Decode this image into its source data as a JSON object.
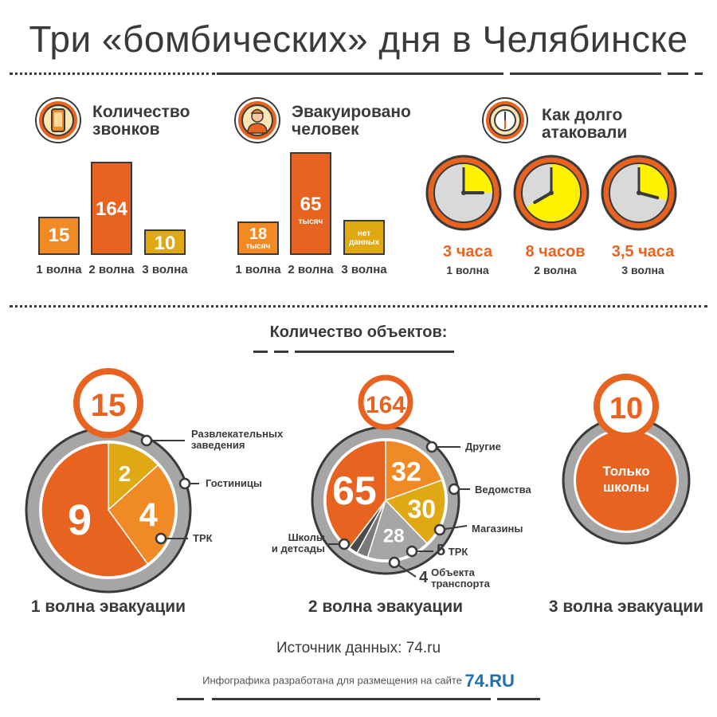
{
  "title": "Три «бомбических» дня в Челябинске",
  "colors": {
    "orange": "#e8631f",
    "amber": "#f08a24",
    "gold": "#e0a812",
    "gray": "#a6a6a6",
    "dark": "#3a3a3a",
    "yellow": "#fff200"
  },
  "calls": {
    "heading_line1": "Количество",
    "heading_line2": "звонков",
    "icon": "phone-icon",
    "bars": [
      {
        "value": "15",
        "wave": "1 волна",
        "numeric": 15
      },
      {
        "value": "164",
        "wave": "2 волна",
        "numeric": 164
      },
      {
        "value": "10",
        "wave": "3 волна",
        "numeric": 10
      }
    ]
  },
  "evacuated": {
    "heading_line1": "Эвакуировано",
    "heading_line2": "человек",
    "icon": "person-icon",
    "bars": [
      {
        "value": "18",
        "sub": "тысяч",
        "wave": "1 волна"
      },
      {
        "value": "65",
        "sub": "тысяч",
        "wave": "2 волна"
      },
      {
        "value": "нет",
        "sub": "данных",
        "wave": "3 волна"
      }
    ]
  },
  "duration": {
    "heading_line1": "Как долго",
    "heading_line2": "атаковали",
    "icon": "clock-icon",
    "clocks": [
      {
        "label": "3 часа",
        "wave": "1 волна",
        "hours": 3
      },
      {
        "label": "8 часов",
        "wave": "2 волна",
        "hours": 8
      },
      {
        "label": "3,5 часа",
        "wave": "3 волна",
        "hours": 3.5
      }
    ]
  },
  "objects": {
    "title": "Количество объектов:",
    "waves": [
      {
        "total": "15",
        "label": "1 волна эвакуации",
        "slices": [
          {
            "value": 2,
            "name": "Развлекательных заведения"
          },
          {
            "value": 4,
            "name": "Гостиницы"
          },
          {
            "value": 9,
            "name": "ТРК"
          }
        ]
      },
      {
        "total": "164",
        "label": "2 волна эвакуации",
        "slices": [
          {
            "value": 32,
            "name": "Другие"
          },
          {
            "value": 30,
            "name": "Ведомства"
          },
          {
            "value": 28,
            "name": "Магазины"
          },
          {
            "value": 5,
            "name": "ТРК"
          },
          {
            "value": 4,
            "name": "Объекта транспорта"
          },
          {
            "value": 65,
            "name": "Школы и детсады"
          }
        ]
      },
      {
        "total": "10",
        "label": "3 волна эвакуации",
        "center_line1": "Только",
        "center_line2": "школы"
      }
    ]
  },
  "ann": {
    "w1_a": "Развлекательных",
    "w1_b": "заведения",
    "w1_c": "Гостиницы",
    "w1_d": "ТРК",
    "w2_a": "Другие",
    "w2_b": "Ведомства",
    "w2_c": "Магазины",
    "w2_d_num": "5",
    "w2_d": "ТРК",
    "w2_e_num": "4",
    "w2_e1": "Объекта",
    "w2_e2": "транспорта",
    "w2_f1": "Школы",
    "w2_f2": "и детсады"
  },
  "source": "Источник данных: 74.ru",
  "credit": "Инфографика разработана для размещения на сайте",
  "brand": "74.RU"
}
